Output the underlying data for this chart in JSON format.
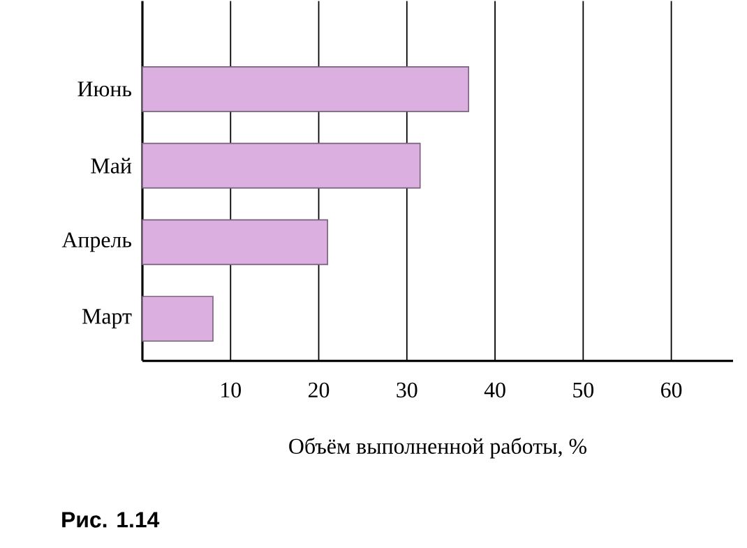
{
  "chart_data": {
    "type": "bar",
    "orientation": "horizontal",
    "categories": [
      "Июнь",
      "Май",
      "Апрель",
      "Март"
    ],
    "values": [
      37,
      31.5,
      21,
      8
    ],
    "color": "#dbb0e0",
    "xlabel": "Объём выполненной работы, %",
    "xlim": [
      0,
      67
    ],
    "xticks": [
      10,
      20,
      30,
      40,
      50,
      60
    ],
    "grid": "x",
    "annotations": [
      "Рис. 1.14"
    ]
  }
}
